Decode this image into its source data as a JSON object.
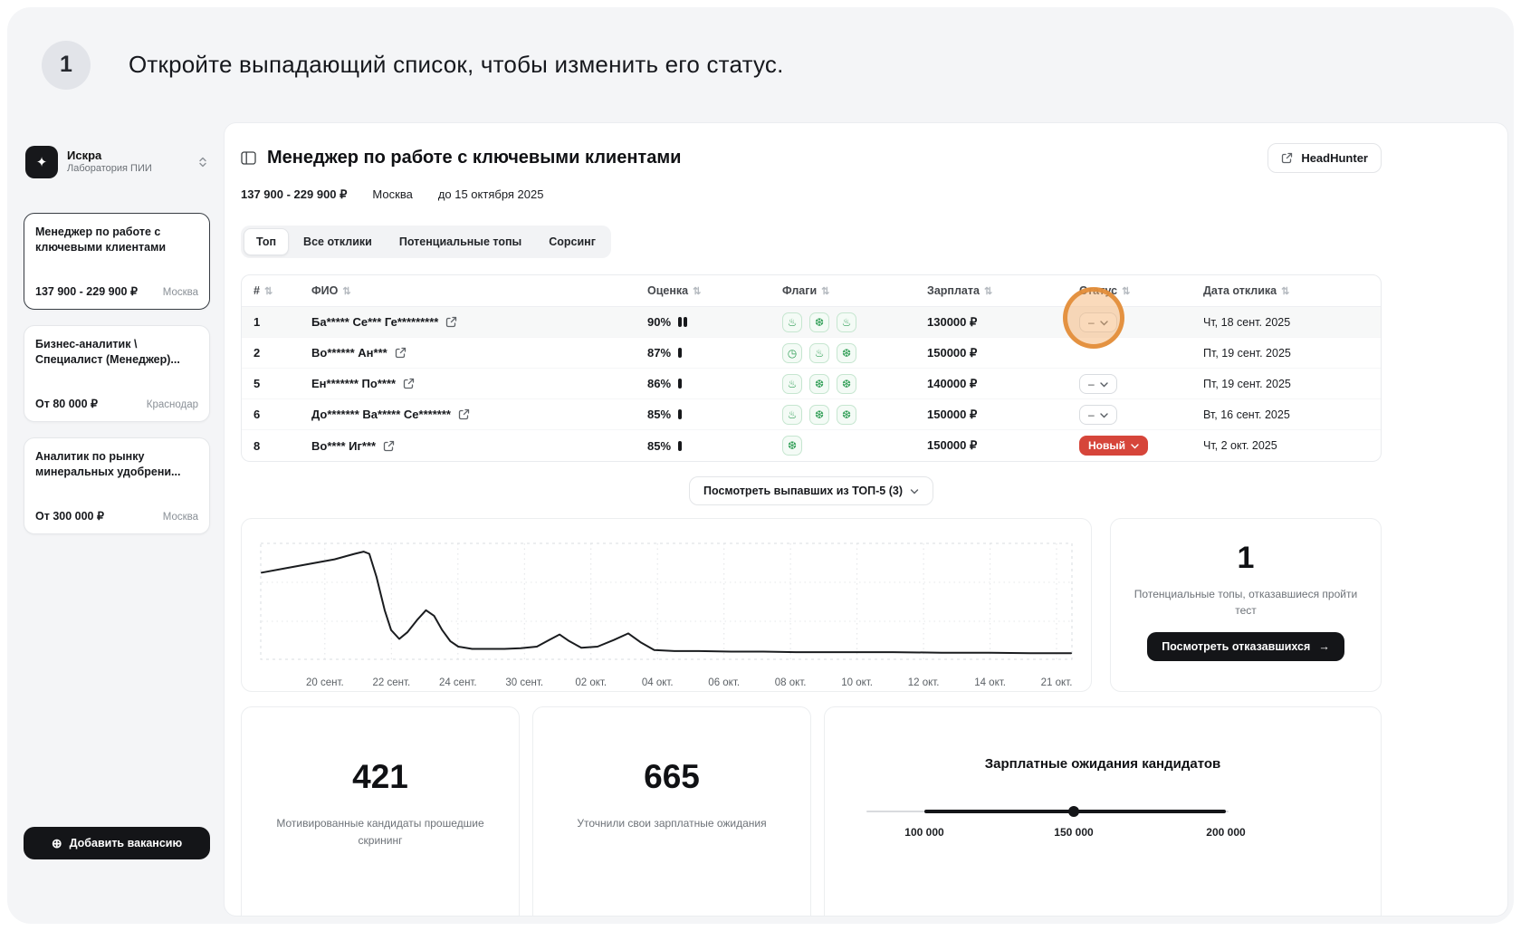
{
  "tutorial": {
    "step": "1",
    "text": "Откройте выпадающий список, чтобы изменить его статус."
  },
  "icons": {
    "sparkle": "✦",
    "add": "⊕",
    "arrow_right": "→",
    "sort": "⇅",
    "fire": "♨",
    "snowflake": "❆",
    "clock": "◷"
  },
  "colors": {
    "badge_red": "#d6453a",
    "flag_green": "#2f9e55",
    "highlight_orange": "#e38d37"
  },
  "sidebar": {
    "org": {
      "name": "Искра",
      "subtitle": "Лаборатория ПИИ"
    },
    "vacancies": [
      {
        "title": "Менеджер по работе с ключевыми клиентами",
        "salary": "137 900 - 229 900 ₽",
        "city": "Москва",
        "selected": true
      },
      {
        "title": "Бизнес-аналитик \\ Специалист (Менеджер)...",
        "salary": "От 80 000 ₽",
        "city": "Краснодар",
        "selected": false
      },
      {
        "title": "Аналитик по рынку минеральных удобрени...",
        "salary": "От 300 000 ₽",
        "city": "Москва",
        "selected": false
      }
    ],
    "add_vacancy_label": "Добавить вакансию"
  },
  "header": {
    "title": "Менеджер по работе с ключевыми клиентами",
    "headhunter_label": "HeadHunter",
    "salary_range": "137 900 - 229 900 ₽",
    "city": "Москва",
    "deadline": "до 15 октября 2025"
  },
  "tabs": {
    "active": "Топ",
    "items": [
      {
        "label": "Топ"
      },
      {
        "label": "Все отклики"
      },
      {
        "label": "Потенциальные топы"
      },
      {
        "label": "Сорсинг"
      }
    ]
  },
  "table": {
    "columns": [
      "#",
      "ФИО",
      "Оценка",
      "Флаги",
      "Зарплата",
      "Статус",
      "Дата отклика"
    ],
    "rows": [
      {
        "num": "1",
        "name": "Ба***** Се*** Ге*********",
        "score": "90%",
        "bars": 2,
        "flags": [
          "fire",
          "snowflake",
          "fire"
        ],
        "salary": "130000 ₽",
        "status": "–",
        "status_variant": "dash",
        "date": "Чт, 18 сент. 2025",
        "highlighted": true
      },
      {
        "num": "2",
        "name": "Во****** Ан***",
        "score": "87%",
        "bars": 1,
        "flags": [
          "clock",
          "fire",
          "snowflake"
        ],
        "salary": "150000 ₽",
        "status": "",
        "status_variant": "empty",
        "date": "Пт, 19 сент. 2025",
        "highlighted": false
      },
      {
        "num": "5",
        "name": "Ен******* По****",
        "score": "86%",
        "bars": 1,
        "flags": [
          "fire",
          "snowflake",
          "snowflake"
        ],
        "salary": "140000 ₽",
        "status": "–",
        "status_variant": "dash",
        "date": "Пт, 19 сент. 2025",
        "highlighted": false
      },
      {
        "num": "6",
        "name": "До******* Ва***** Се*******",
        "score": "85%",
        "bars": 1,
        "flags": [
          "fire",
          "snowflake",
          "snowflake"
        ],
        "salary": "150000 ₽",
        "status": "–",
        "status_variant": "dash",
        "date": "Вт, 16 сент. 2025",
        "highlighted": false
      },
      {
        "num": "8",
        "name": "Во**** Иг***",
        "score": "85%",
        "bars": 1,
        "flags": [
          "snowflake"
        ],
        "salary": "150000 ₽",
        "status": "Новый",
        "status_variant": "new",
        "date": "Чт, 2 окт. 2025",
        "highlighted": false
      }
    ]
  },
  "expand_button": {
    "label": "Посмотреть выпавших из ТОП-5 (3)"
  },
  "chart_data": {
    "type": "line",
    "x_ticks": [
      "20 сент.",
      "22 сент.",
      "24 сент.",
      "30 сент.",
      "02 окт.",
      "04 окт.",
      "06 окт.",
      "08 окт.",
      "10 окт.",
      "12 окт.",
      "14 окт.",
      "21 окт."
    ],
    "grid": "dotted",
    "y_axis_labels": [],
    "series": [
      {
        "points_pct": [
          [
            0,
            76
          ],
          [
            3,
            80
          ],
          [
            6,
            84
          ],
          [
            9,
            88
          ],
          [
            11.5,
            93
          ],
          [
            12.6,
            95
          ],
          [
            13.3,
            93
          ],
          [
            14.2,
            72
          ],
          [
            15.2,
            42
          ],
          [
            16,
            24
          ],
          [
            17,
            16
          ],
          [
            18,
            22
          ],
          [
            19.2,
            33
          ],
          [
            20.3,
            42
          ],
          [
            21.3,
            37
          ],
          [
            22.3,
            24
          ],
          [
            23.3,
            14
          ],
          [
            24.3,
            9
          ],
          [
            26,
            7
          ],
          [
            28,
            7
          ],
          [
            30,
            7
          ],
          [
            32,
            7.5
          ],
          [
            34,
            9
          ],
          [
            35.5,
            15
          ],
          [
            36.8,
            20
          ],
          [
            38,
            14
          ],
          [
            39.5,
            8
          ],
          [
            41.5,
            9
          ],
          [
            43.5,
            15
          ],
          [
            45.3,
            21
          ],
          [
            46.8,
            13
          ],
          [
            48.5,
            6
          ],
          [
            51,
            5
          ],
          [
            54,
            5
          ],
          [
            58,
            4.5
          ],
          [
            62,
            4.5
          ],
          [
            66,
            4
          ],
          [
            72,
            4
          ],
          [
            78,
            4
          ],
          [
            84,
            3.5
          ],
          [
            90,
            3.5
          ],
          [
            95,
            3
          ],
          [
            100,
            3
          ]
        ]
      }
    ]
  },
  "refused_card": {
    "count": "1",
    "text": "Потенциальные топы, отказавшиеся пройти тест",
    "button_label": "Посмотреть отказавшихся"
  },
  "stats": [
    {
      "value": "421",
      "label": "Мотивированные кандидаты прошедшие скрининг"
    },
    {
      "value": "665",
      "label": "Уточнили свои зарплатные ожидания"
    }
  ],
  "salary_card": {
    "title": "Зарплатные ожидания кандидатов",
    "labels": [
      "100 000",
      "150 000",
      "200 000"
    ],
    "marker_value": "150 000"
  }
}
